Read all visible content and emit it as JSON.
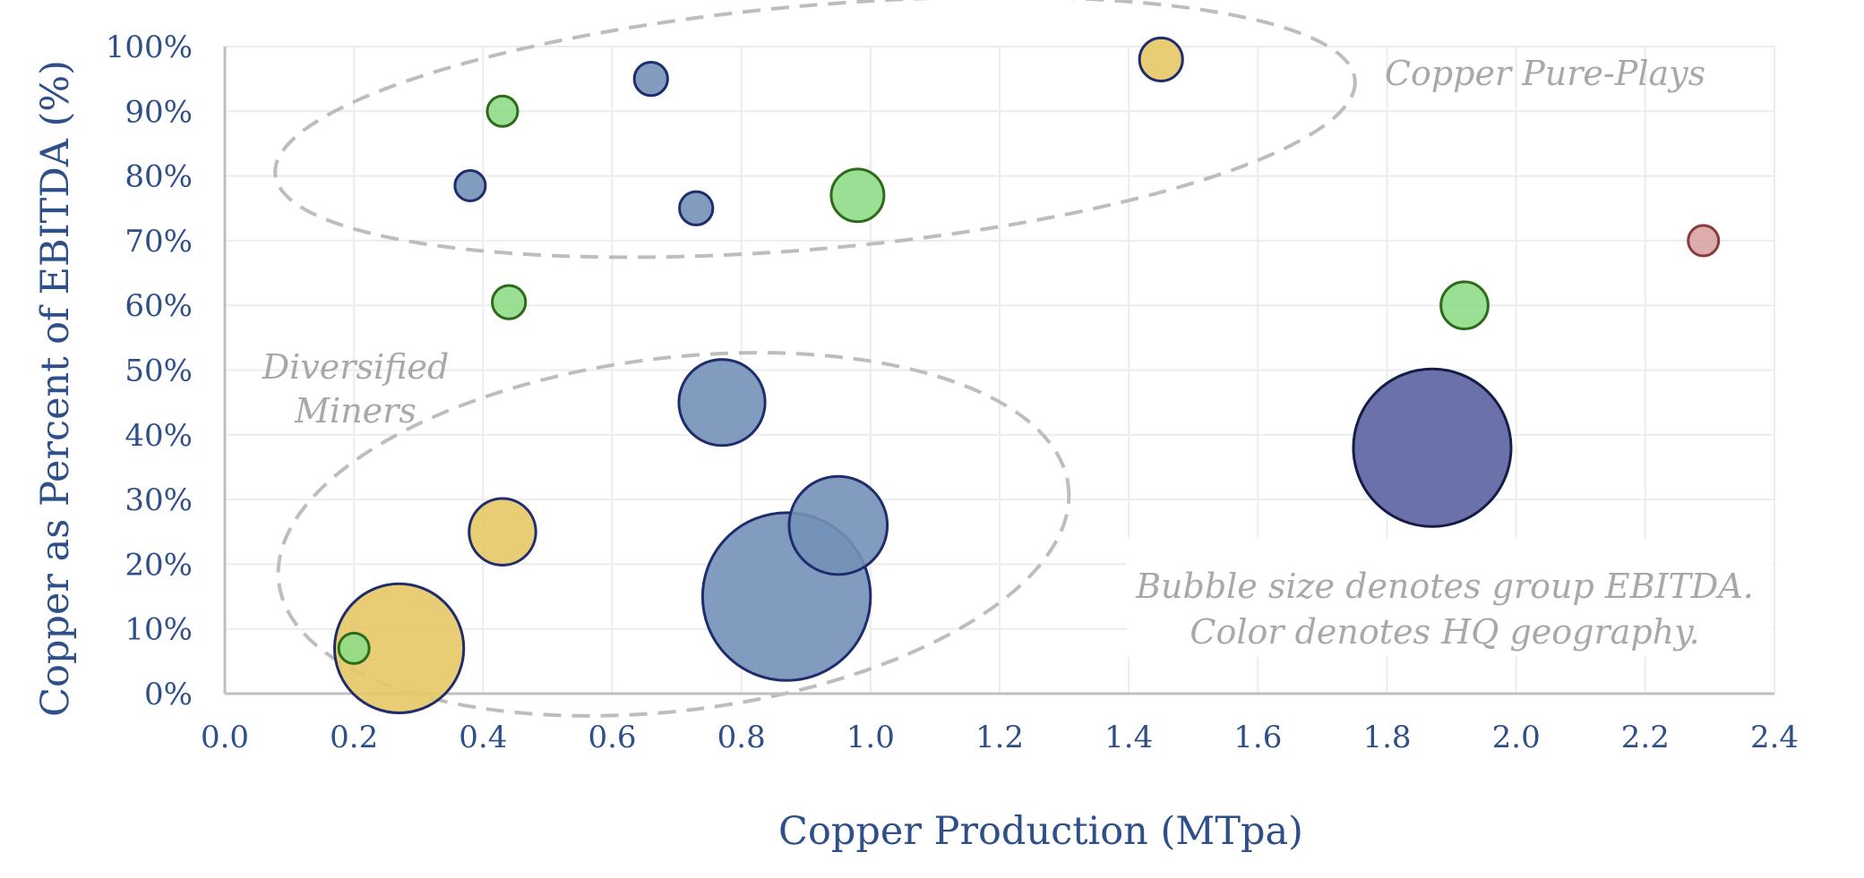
{
  "chart_data": {
    "type": "scatter",
    "variant": "bubble",
    "xlabel": "Copper Production (MTpa)",
    "ylabel": "Copper as Percent of EBITDA (%)",
    "xlim": [
      0,
      2.4
    ],
    "ylim": [
      0,
      100
    ],
    "x_ticks": [
      "0.0",
      "0.2",
      "0.4",
      "0.6",
      "0.8",
      "1.0",
      "1.2",
      "1.4",
      "1.6",
      "1.8",
      "2.0",
      "2.2",
      "2.4"
    ],
    "y_ticks": [
      "0%",
      "10%",
      "20%",
      "30%",
      "40%",
      "50%",
      "60%",
      "70%",
      "80%",
      "90%",
      "100%"
    ],
    "grid": true,
    "legend": "none",
    "colors": {
      "blue": "#7391b7",
      "navy": "#5b63a0",
      "yellow": "#e6c866",
      "green": "#8fdb87",
      "red": "#d9a3a3"
    },
    "bubble_size_unit": "relative group EBITDA",
    "points": [
      {
        "x": 0.38,
        "y": 78.5,
        "size": 0.25,
        "color": "blue"
      },
      {
        "x": 0.43,
        "y": 90,
        "size": 0.25,
        "color": "green"
      },
      {
        "x": 0.44,
        "y": 60.5,
        "size": 0.3,
        "color": "green"
      },
      {
        "x": 0.66,
        "y": 95,
        "size": 0.3,
        "color": "blue"
      },
      {
        "x": 0.73,
        "y": 75,
        "size": 0.3,
        "color": "blue"
      },
      {
        "x": 0.98,
        "y": 77,
        "size": 0.75,
        "color": "green"
      },
      {
        "x": 1.45,
        "y": 98,
        "size": 0.5,
        "color": "yellow"
      },
      {
        "x": 2.29,
        "y": 70,
        "size": 0.25,
        "color": "red"
      },
      {
        "x": 1.92,
        "y": 60,
        "size": 0.6,
        "color": "green"
      },
      {
        "x": 0.77,
        "y": 45,
        "size": 2.0,
        "color": "blue"
      },
      {
        "x": 1.87,
        "y": 38,
        "size": 6.7,
        "color": "navy"
      },
      {
        "x": 0.43,
        "y": 25,
        "size": 1.2,
        "color": "yellow"
      },
      {
        "x": 0.95,
        "y": 26,
        "size": 2.6,
        "color": "blue"
      },
      {
        "x": 0.87,
        "y": 15,
        "size": 7.6,
        "color": "blue"
      },
      {
        "x": 0.27,
        "y": 7,
        "size": 4.5,
        "color": "yellow"
      },
      {
        "x": 0.2,
        "y": 7,
        "size": 0.25,
        "color": "green"
      }
    ],
    "annotations": {
      "pure_plays": "Copper Pure-Plays",
      "diversified_line1": "Diversified",
      "diversified_line2": "Miners",
      "note_line1": "Bubble size denotes group EBITDA.",
      "note_line2": "Color denotes HQ geography."
    }
  }
}
